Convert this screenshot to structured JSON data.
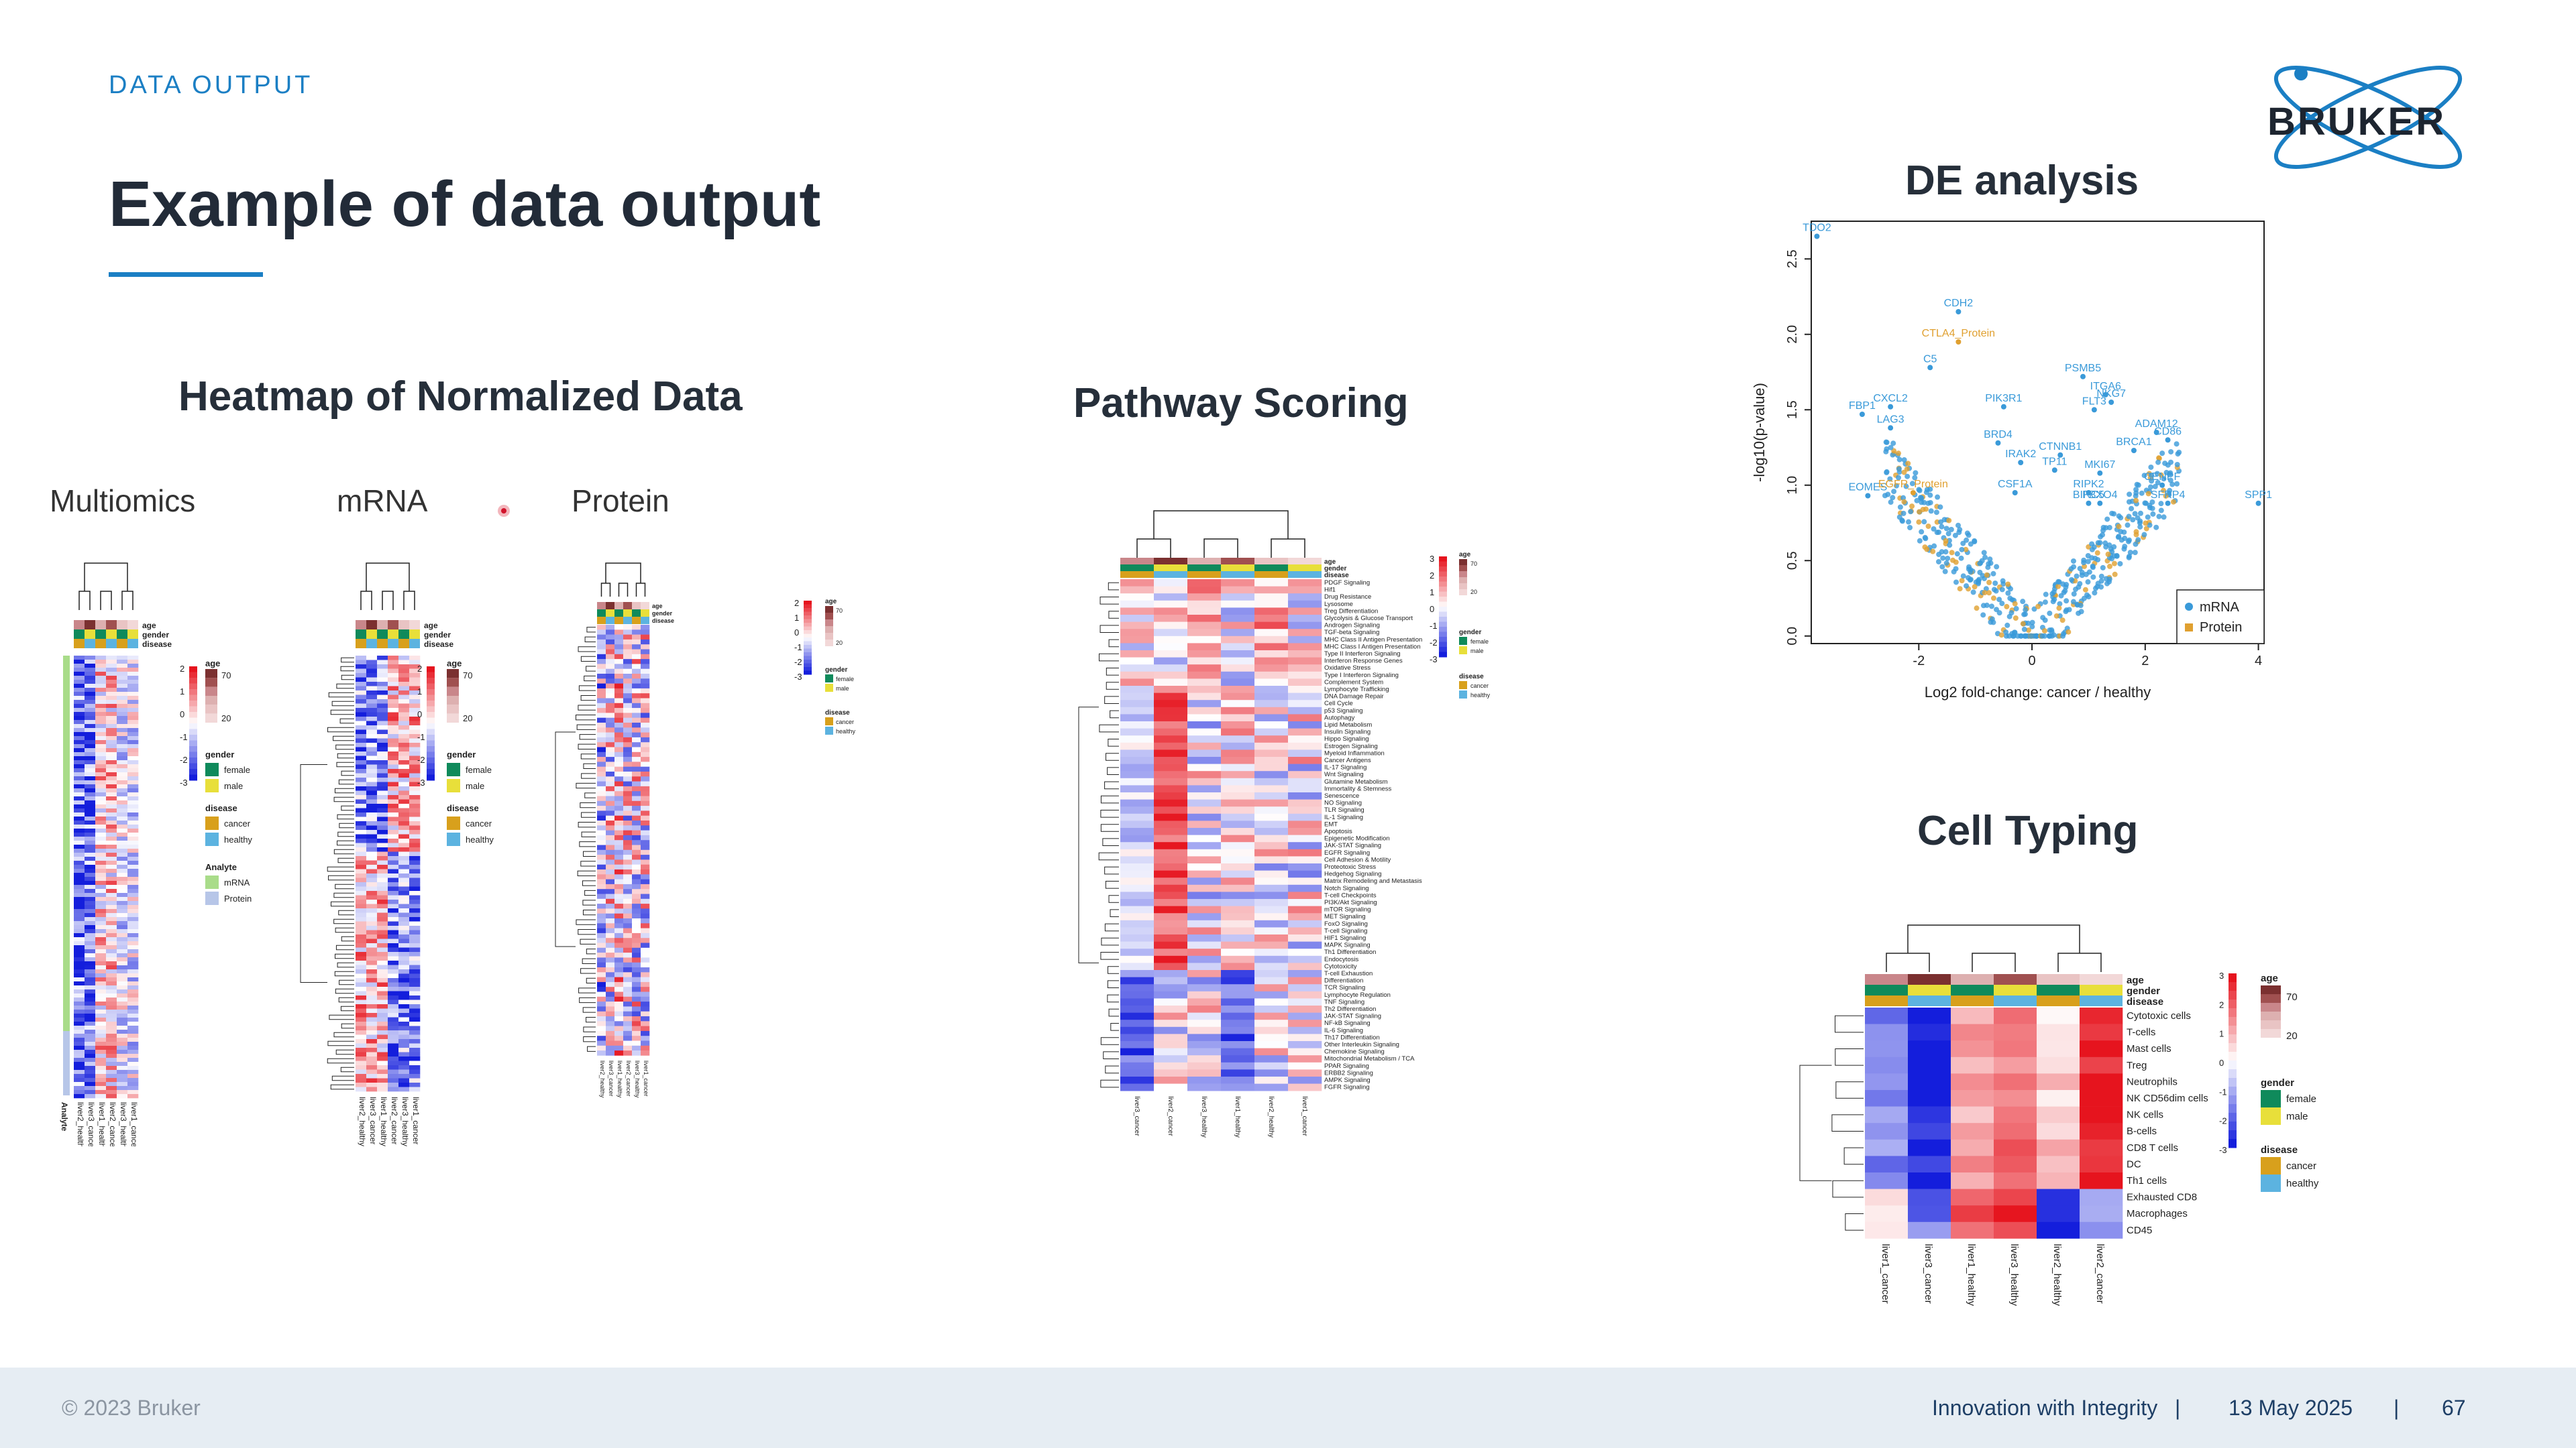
{
  "header": {
    "section_tag": "DATA OUTPUT",
    "title": "Example of data output",
    "brand": "BRUKER"
  },
  "heatmap_panel": {
    "title": "Heatmap of Normalized Data",
    "subtitles": [
      "Multiomics",
      "mRNA",
      "Protein"
    ],
    "annotation_rows": [
      "age",
      "gender",
      "disease"
    ],
    "legend_age": "age",
    "legend_gender": "gender",
    "legend_disease": "disease",
    "legend_analyte": "Analyte",
    "gender_values": [
      "female",
      "male"
    ],
    "disease_values": [
      "cancer",
      "healthy"
    ],
    "analyte_values": [
      "mRNA",
      "Protein"
    ],
    "age_ticks": [
      "70",
      "20"
    ],
    "scale_ticks": [
      "2",
      "1",
      "0",
      "-1",
      "-2",
      "-3"
    ],
    "multiomics_samples": [
      "liver2_healthy",
      "liver3_cancer",
      "liver1_healthy",
      "liver2_cancer",
      "liver3_healthy",
      "liver1_cancer"
    ],
    "analyte_axis_label": "Analyte"
  },
  "pathway_panel": {
    "title": "Pathway Scoring",
    "samples": [
      "liver3_cancer",
      "liver2_cancer",
      "liver3_healthy",
      "liver1_healthy",
      "liver2_healthy",
      "liver1_cancer"
    ],
    "pathways": [
      "PDGF Signaling",
      "Hif1",
      "Drug Resistance",
      "Lysosome",
      "Treg Differentiation",
      "Glycolysis & Glucose Transport",
      "Androgen Signaling",
      "TGF-beta Signaling",
      "MHC Class II Antigen Presentation",
      "MHC Class I Antigen Presentation",
      "Type II Interferon Signaling",
      "Interferon Response Genes",
      "Oxidative Stress",
      "Type I Interferon Signaling",
      "Complement System",
      "Lymphocyte Trafficking",
      "DNA Damage Repair",
      "Cell Cycle",
      "p53 Signaling",
      "Autophagy",
      "Lipid Metabolism",
      "Insulin Signaling",
      "Hippo Signaling",
      "Estrogen Signaling",
      "Myeloid Inflammation",
      "Cancer Antigens",
      "IL-17 Signaling",
      "Wnt Signaling",
      "Glutamine Metabolism",
      "Immortality & Stemness",
      "Senescence",
      "NO Signaling",
      "TLR Signaling",
      "IL-1 Signaling",
      "EMT",
      "Apoptosis",
      "Epigenetic Modification",
      "JAK-STAT Signaling",
      "EGFR Signaling",
      "Cell Adhesion & Motility",
      "Proteotoxic Stress",
      "Hedgehog Signaling",
      "Matrix Remodeling and Metastasis",
      "Notch Signaling",
      "T-cell Checkpoints",
      "PI3K/Akt Signaling",
      "mTOR Signaling",
      "MET Signaling",
      "FoxO Signaling",
      "T-cell Signaling",
      "HIF1 Signaling",
      "MAPK Signaling",
      "Th1 Differentiation",
      "Endocytosis",
      "Cytotoxicity",
      "T-cell Exhaustion",
      "Differentiation",
      "TCR Signaling",
      "Lymphocyte Regulation",
      "TNF Signaling",
      "Th2 Differentiation",
      "JAK-STAT Signaling",
      "NF-kB Signaling",
      "IL-6 Signaling",
      "Th17 Differentiation",
      "Other Interleukin Signaling",
      "Chemokine Signaling",
      "Mitochondrial Metabolism / TCA",
      "PPAR Signaling",
      "ERBB2 Signaling",
      "AMPK Signaling",
      "FGFR Signaling"
    ]
  },
  "de_panel": {
    "title": "DE analysis",
    "xlabel": "Log2 fold-change: cancer / healthy",
    "ylabel": "-log10(p-value)",
    "legend": [
      "mRNA",
      "Protein"
    ],
    "colors": {
      "mrna": "#3a9ad9",
      "protein": "#e0a030"
    },
    "x_ticks": [
      "-2",
      "0",
      "2",
      "4"
    ],
    "y_ticks": [
      "0.0",
      "0.5",
      "1.0",
      "1.5",
      "2.0",
      "2.5"
    ],
    "labels": [
      {
        "text": "TDO2",
        "x": -3.8,
        "y": 2.65,
        "kind": "mrna"
      },
      {
        "text": "CDH2",
        "x": -1.3,
        "y": 2.15,
        "kind": "mrna"
      },
      {
        "text": "CTLA4_Protein",
        "x": -1.3,
        "y": 1.95,
        "kind": "protein"
      },
      {
        "text": "C5",
        "x": -1.8,
        "y": 1.78,
        "kind": "mrna"
      },
      {
        "text": "PSMB5",
        "x": 0.9,
        "y": 1.72,
        "kind": "mrna"
      },
      {
        "text": "ITGA6",
        "x": 1.3,
        "y": 1.6,
        "kind": "mrna"
      },
      {
        "text": "NKG7",
        "x": 1.4,
        "y": 1.55,
        "kind": "mrna"
      },
      {
        "text": "FLT3",
        "x": 1.1,
        "y": 1.5,
        "kind": "mrna"
      },
      {
        "text": "PIK3R1",
        "x": -0.5,
        "y": 1.52,
        "kind": "mrna"
      },
      {
        "text": "CXCL2",
        "x": -2.5,
        "y": 1.52,
        "kind": "mrna"
      },
      {
        "text": "FBP1",
        "x": -3.0,
        "y": 1.47,
        "kind": "mrna"
      },
      {
        "text": "LAG3",
        "x": -2.5,
        "y": 1.38,
        "kind": "mrna"
      },
      {
        "text": "ADAM12",
        "x": 2.2,
        "y": 1.35,
        "kind": "mrna"
      },
      {
        "text": "CD86",
        "x": 2.4,
        "y": 1.3,
        "kind": "mrna"
      },
      {
        "text": "BRCA1",
        "x": 1.8,
        "y": 1.23,
        "kind": "mrna"
      },
      {
        "text": "CTNNB1",
        "x": 0.5,
        "y": 1.2,
        "kind": "mrna"
      },
      {
        "text": "MKI67",
        "x": 1.2,
        "y": 1.08,
        "kind": "mrna"
      },
      {
        "text": "TP11",
        "x": 0.4,
        "y": 1.1,
        "kind": "mrna"
      },
      {
        "text": "CENPF",
        "x": 2.3,
        "y": 1.0,
        "kind": "mrna"
      },
      {
        "text": "RIPK2",
        "x": 1.0,
        "y": 0.95,
        "kind": "mrna"
      },
      {
        "text": "BIRC5",
        "x": 1.0,
        "y": 0.88,
        "kind": "mrna"
      },
      {
        "text": "FBXO4",
        "x": 1.2,
        "y": 0.88,
        "kind": "mrna"
      },
      {
        "text": "SFRP4",
        "x": 2.4,
        "y": 0.88,
        "kind": "mrna"
      },
      {
        "text": "SPP1",
        "x": 4.0,
        "y": 0.88,
        "kind": "mrna"
      },
      {
        "text": "EOMES",
        "x": -2.9,
        "y": 0.93,
        "kind": "mrna"
      },
      {
        "text": "EGFR_Protein",
        "x": -2.1,
        "y": 0.95,
        "kind": "protein"
      },
      {
        "text": "BRD4",
        "x": -0.6,
        "y": 1.28,
        "kind": "mrna"
      },
      {
        "text": "IRAK2",
        "x": -0.2,
        "y": 1.15,
        "kind": "mrna"
      },
      {
        "text": "CSF1A",
        "x": -0.3,
        "y": 0.95,
        "kind": "mrna"
      }
    ]
  },
  "cell_panel": {
    "title": "Cell Typing",
    "annotation_rows": [
      "age",
      "gender",
      "disease"
    ],
    "samples": [
      "liver1_cancer",
      "liver3_cancer",
      "liver1_healthy",
      "liver3_healthy",
      "liver2_healthy",
      "liver2_cancer"
    ],
    "cell_types": [
      "Cytotoxic cells",
      "T-cells",
      "Mast cells",
      "Treg",
      "Neutrophils",
      "NK CD56dim cells",
      "NK cells",
      "B-cells",
      "CD8 T cells",
      "DC",
      "Th1 cells",
      "Exhausted CD8",
      "Macrophages",
      "CD45"
    ]
  },
  "footer": {
    "copyright": "© 2023 Bruker",
    "tagline": "Innovation with Integrity",
    "sep1": "|",
    "date": "13 May 2025",
    "sep2": "|",
    "page": "67"
  }
}
